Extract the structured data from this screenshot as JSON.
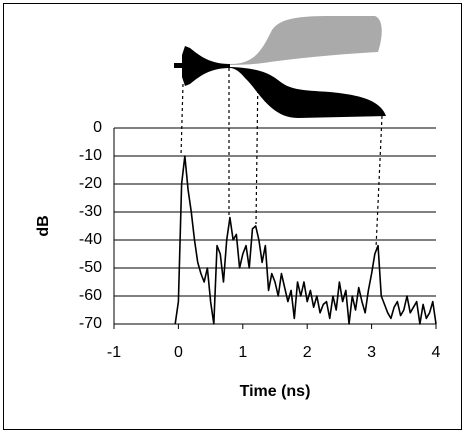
{
  "chart_data": {
    "type": "line",
    "ylabel": "dB",
    "xlabel": "Time (ns)",
    "x": [
      -0.05,
      0,
      0.05,
      0.1,
      0.15,
      0.2,
      0.25,
      0.3,
      0.35,
      0.4,
      0.45,
      0.5,
      0.55,
      0.6,
      0.65,
      0.7,
      0.75,
      0.8,
      0.85,
      0.9,
      0.95,
      1.0,
      1.05,
      1.1,
      1.15,
      1.2,
      1.25,
      1.3,
      1.35,
      1.4,
      1.45,
      1.5,
      1.55,
      1.6,
      1.65,
      1.7,
      1.75,
      1.8,
      1.85,
      1.9,
      1.95,
      2.0,
      2.05,
      2.1,
      2.15,
      2.2,
      2.25,
      2.3,
      2.35,
      2.4,
      2.45,
      2.5,
      2.55,
      2.6,
      2.65,
      2.7,
      2.75,
      2.8,
      2.85,
      2.9,
      2.95,
      3.0,
      3.05,
      3.1,
      3.15,
      3.2,
      3.25,
      3.3,
      3.35,
      3.4,
      3.45,
      3.5,
      3.55,
      3.6,
      3.65,
      3.7,
      3.75,
      3.8,
      3.85,
      3.9,
      3.95,
      4.0
    ],
    "values": [
      -70,
      -62,
      -20,
      -10,
      -22,
      -30,
      -40,
      -48,
      -52,
      -55,
      -50,
      -62,
      -70,
      -42,
      -45,
      -55,
      -40,
      -32,
      -40,
      -38,
      -50,
      -45,
      -42,
      -50,
      -36,
      -35,
      -40,
      -48,
      -42,
      -58,
      -52,
      -55,
      -60,
      -52,
      -57,
      -62,
      -58,
      -68,
      -55,
      -60,
      -55,
      -62,
      -58,
      -64,
      -60,
      -66,
      -63,
      -62,
      -68,
      -60,
      -65,
      -55,
      -62,
      -58,
      -70,
      -60,
      -65,
      -57,
      -62,
      -66,
      -58,
      -52,
      -45,
      -42,
      -60,
      -63,
      -66,
      -68,
      -64,
      -62,
      -67,
      -65,
      -60,
      -66,
      -64,
      -62,
      -70,
      -63,
      -68,
      -66,
      -62,
      -70
    ],
    "color": "#000000",
    "xlim": [
      -1,
      4
    ],
    "xticks": [
      -1,
      0,
      1,
      2,
      3,
      4
    ],
    "ylim": [
      -70,
      0
    ],
    "yticks": [
      0,
      -10,
      -20,
      -30,
      -40,
      -50,
      -60,
      -70
    ],
    "grid": true
  }
}
